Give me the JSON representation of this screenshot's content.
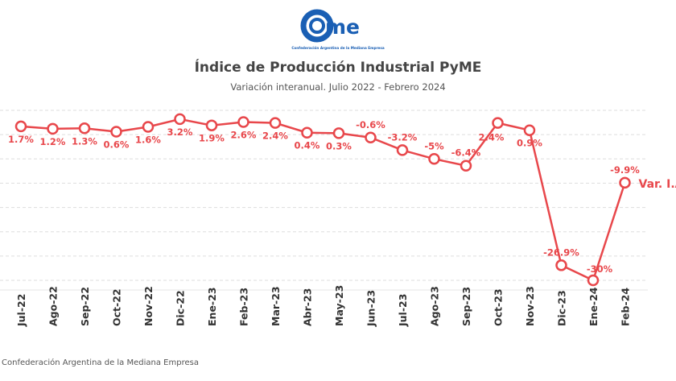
{
  "logo": {
    "text": "came",
    "tagline": "Confederación Argentina de la Mediana Empresa",
    "color": "#1a5fb4"
  },
  "header": {
    "title": "Índice de Producción Industrial PyME",
    "subtitle": "Variación interanual. Julio 2022 - Febrero 2024"
  },
  "source": "Confederación Argentina de la Mediana Empresa",
  "chart_data": {
    "type": "line",
    "title": "Índice de Producción Industrial PyME",
    "subtitle": "Variación interanual. Julio 2022 - Febrero 2024",
    "categories": [
      "Jul-22",
      "Ago-22",
      "Sep-22",
      "Oct-22",
      "Nov-22",
      "Dic-22",
      "Ene-23",
      "Feb-23",
      "Mar-23",
      "Abr-23",
      "May-23",
      "Jun-23",
      "Jul-23",
      "Ago-23",
      "Sep-23",
      "Oct-23",
      "Nov-23",
      "Dic-23",
      "Ene-24",
      "Feb-24"
    ],
    "series": [
      {
        "name": "Var. I.A",
        "values": [
          1.7,
          1.2,
          1.3,
          0.6,
          1.6,
          3.2,
          1.9,
          2.6,
          2.4,
          0.4,
          0.3,
          -0.6,
          -3.2,
          -5,
          -6.4,
          2.4,
          0.9,
          -26.9,
          -30,
          -9.9
        ],
        "labels": [
          "1.7%",
          "1.2%",
          "1.3%",
          "0.6%",
          "1.6%",
          "3.2%",
          "1.9%",
          "2.6%",
          "2.4%",
          "0.4%",
          "0.3%",
          "-0.6%",
          "-3.2%",
          "-5%",
          "-6.4%",
          "2.4%",
          "0.9%",
          "-26.9%",
          "-30%",
          "-9.9%"
        ],
        "color": "#e8474b"
      }
    ],
    "ylim": [
      -30,
      5
    ],
    "grid": true,
    "legend": "end-of-line label"
  }
}
